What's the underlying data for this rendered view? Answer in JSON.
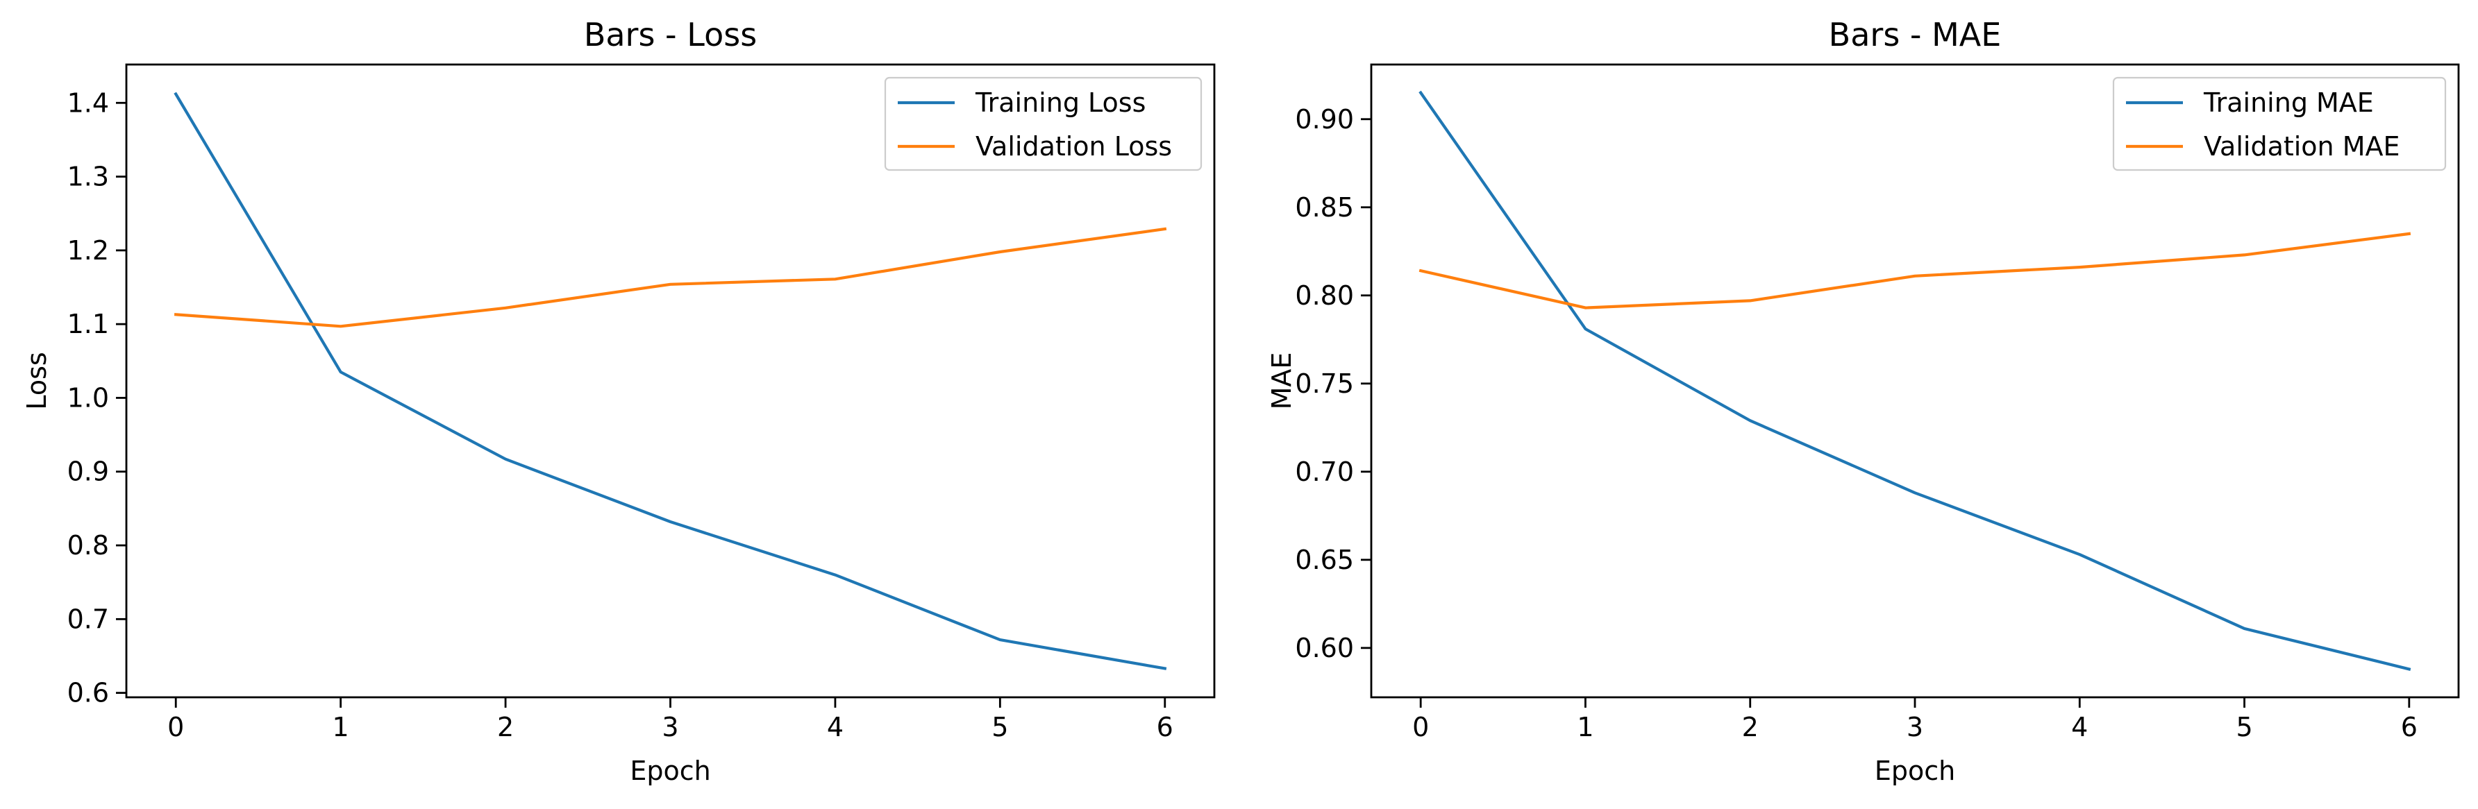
{
  "chart_data": [
    {
      "type": "line",
      "title": "Bars - Loss",
      "xlabel": "Epoch",
      "ylabel": "Loss",
      "x": [
        0,
        1,
        2,
        3,
        4,
        5,
        6
      ],
      "xticks": [
        "0",
        "1",
        "2",
        "3",
        "4",
        "5",
        "6"
      ],
      "xlim": [
        -0.3,
        6.3
      ],
      "yticks": [
        "0.6",
        "0.7",
        "0.8",
        "0.9",
        "1.0",
        "1.1",
        "1.2",
        "1.3",
        "1.4"
      ],
      "ylim": [
        0.594,
        1.452
      ],
      "grid": false,
      "legend": "top-right",
      "series": [
        {
          "name": "Training Loss",
          "color": "#1f77b4",
          "values": [
            1.412,
            1.035,
            0.917,
            0.832,
            0.76,
            0.672,
            0.633
          ]
        },
        {
          "name": "Validation Loss",
          "color": "#ff7f0e",
          "values": [
            1.113,
            1.097,
            1.122,
            1.154,
            1.161,
            1.198,
            1.229
          ]
        }
      ]
    },
    {
      "type": "line",
      "title": "Bars - MAE",
      "xlabel": "Epoch",
      "ylabel": "MAE",
      "x": [
        0,
        1,
        2,
        3,
        4,
        5,
        6
      ],
      "xticks": [
        "0",
        "1",
        "2",
        "3",
        "4",
        "5",
        "6"
      ],
      "xlim": [
        -0.3,
        6.3
      ],
      "yticks": [
        "0.60",
        "0.65",
        "0.70",
        "0.75",
        "0.80",
        "0.85",
        "0.90"
      ],
      "ylim": [
        0.572,
        0.931
      ],
      "grid": false,
      "legend": "top-right",
      "series": [
        {
          "name": "Training MAE",
          "color": "#1f77b4",
          "values": [
            0.915,
            0.781,
            0.729,
            0.688,
            0.653,
            0.611,
            0.588
          ]
        },
        {
          "name": "Validation MAE",
          "color": "#ff7f0e",
          "values": [
            0.814,
            0.793,
            0.797,
            0.811,
            0.816,
            0.823,
            0.835
          ]
        }
      ]
    }
  ]
}
